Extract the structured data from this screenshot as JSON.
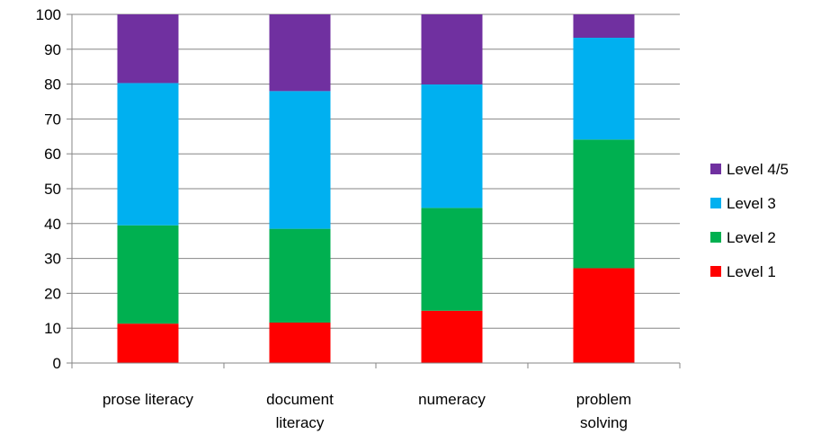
{
  "chart_data": {
    "type": "bar",
    "stacked": true,
    "categories": [
      [
        "prose literacy"
      ],
      [
        "document",
        "literacy"
      ],
      [
        "numeracy"
      ],
      [
        "problem",
        "solving"
      ]
    ],
    "series": [
      {
        "name": "Level 1",
        "color": "#FF0000",
        "values": [
          11.3,
          11.6,
          15.0,
          27.2
        ]
      },
      {
        "name": "Level 2",
        "color": "#00B050",
        "values": [
          28.2,
          26.9,
          29.5,
          36.9
        ]
      },
      {
        "name": "Level 3",
        "color": "#00B0F0",
        "values": [
          40.8,
          39.5,
          35.4,
          29.2
        ]
      },
      {
        "name": "Level 4/5",
        "color": "#7030A0",
        "values": [
          19.7,
          22.0,
          20.1,
          6.7
        ]
      }
    ],
    "ylim": [
      0,
      100
    ],
    "yticks": [
      0,
      10,
      20,
      30,
      40,
      50,
      60,
      70,
      80,
      90,
      100
    ],
    "grid": true,
    "legend": {
      "position": "right",
      "order": [
        "Level 4/5",
        "Level 3",
        "Level 2",
        "Level 1"
      ]
    }
  }
}
